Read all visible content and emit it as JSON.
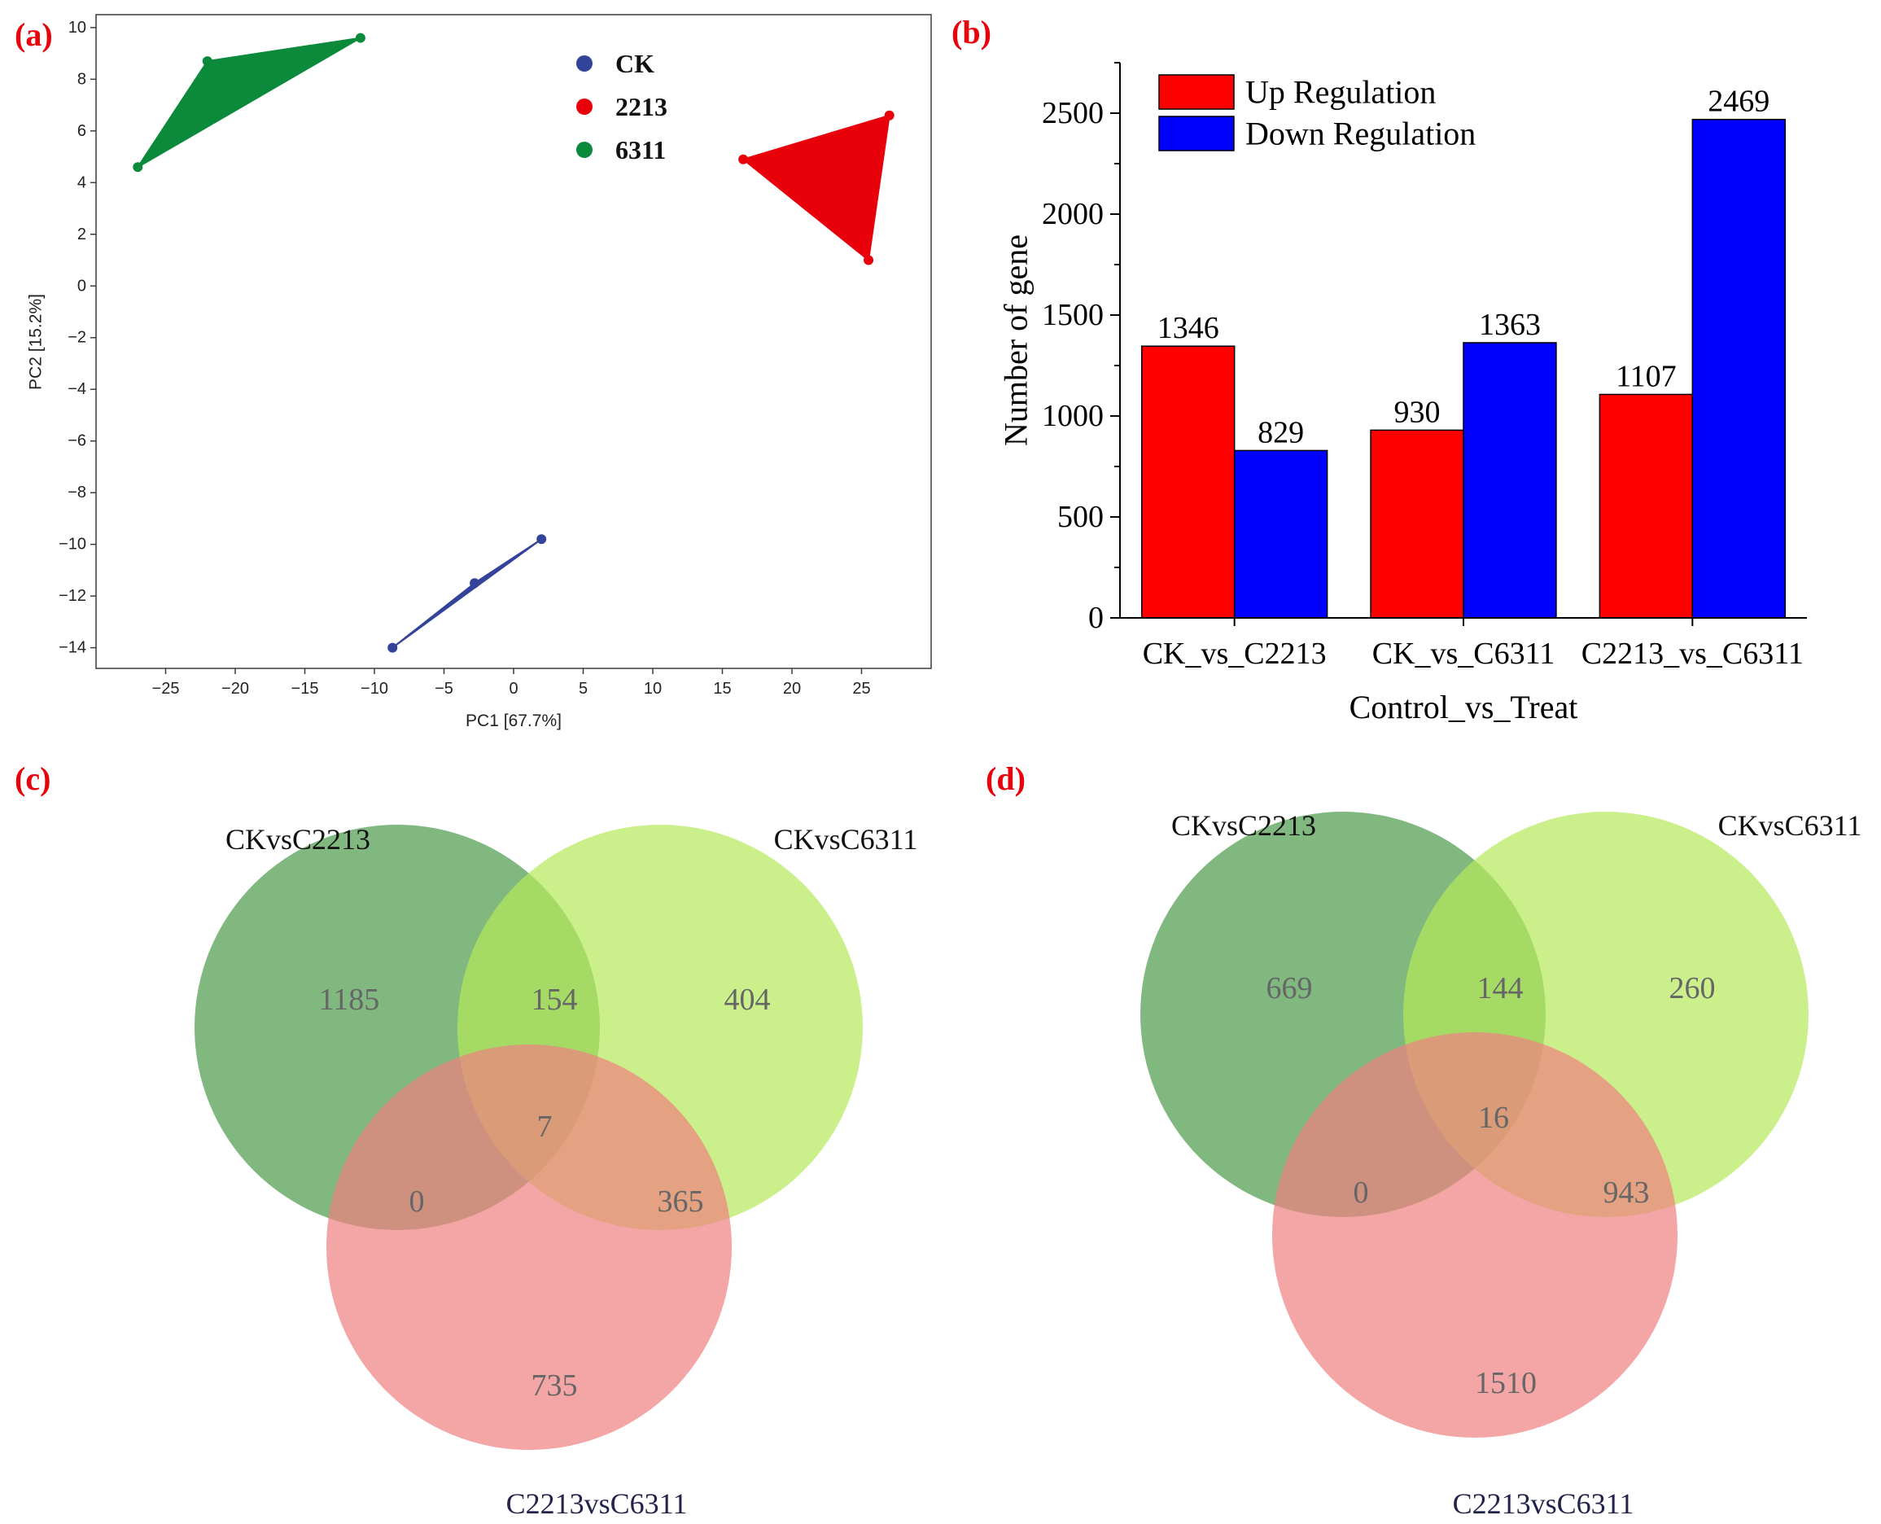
{
  "panel_labels": {
    "a": "(a)",
    "b": "(b)",
    "c": "(c)",
    "d": "(d)"
  },
  "chart_data": [
    {
      "type": "scatter",
      "xlabel": "PC1 [67.7%]",
      "ylabel": "PC2 [15.2%]",
      "xlim": [
        -30,
        30
      ],
      "ylim": [
        -14.8,
        10.5
      ],
      "xticks": [
        -25,
        -20,
        -15,
        -10,
        -5,
        0,
        5,
        10,
        15,
        20,
        25
      ],
      "yticks": [
        -14,
        -12,
        -10,
        -8,
        -6,
        -4,
        -2,
        0,
        2,
        4,
        6,
        8,
        10
      ],
      "grid": false,
      "legend": "top-right",
      "series": [
        {
          "name": "CK",
          "color": "#34439a",
          "points": [
            [
              -8.7,
              -14.0
            ],
            [
              -2.8,
              -11.5
            ],
            [
              2.0,
              -9.8
            ]
          ]
        },
        {
          "name": "2213",
          "color": "#e8000b",
          "points": [
            [
              16.5,
              4.9
            ],
            [
              27.0,
              6.6
            ],
            [
              25.5,
              1.0
            ]
          ]
        },
        {
          "name": "6311",
          "color": "#0b8a3b",
          "points": [
            [
              -27.0,
              4.6
            ],
            [
              -22.0,
              8.7
            ],
            [
              -11.0,
              9.6
            ]
          ]
        }
      ]
    },
    {
      "type": "bar",
      "categories": [
        "CK_vs_C2213",
        "CK_vs_C6311",
        "C2213_vs_C6311"
      ],
      "series": [
        {
          "name": "Up Regulation",
          "color": "#ff0000",
          "values": [
            1346,
            930,
            1107
          ]
        },
        {
          "name": "Down Regulation",
          "color": "#0000ff",
          "values": [
            829,
            1363,
            2469
          ]
        }
      ],
      "xlabel": "Control_vs_Treat",
      "ylabel": "Number of gene",
      "ylim": [
        0,
        2750
      ],
      "yticks": [
        0,
        500,
        1000,
        1500,
        2000,
        2500
      ],
      "grid": false,
      "legend": "top-left"
    },
    {
      "type": "venn",
      "sets": [
        {
          "name": "CKvsC2213",
          "color": "#4a9a4a"
        },
        {
          "name": "CKvsC6311",
          "color": "#b5ea5a"
        },
        {
          "name": "C2213vsC6311",
          "color": "#f08080"
        }
      ],
      "regions": {
        "a_only": 1185,
        "ab": 154,
        "b_only": 404,
        "abc": 7,
        "ac": 0,
        "bc": 365,
        "c_only": 735
      }
    },
    {
      "type": "venn",
      "sets": [
        {
          "name": "CKvsC2213",
          "color": "#4a9a4a"
        },
        {
          "name": "CKvsC6311",
          "color": "#b5ea5a"
        },
        {
          "name": "C2213vsC6311",
          "color": "#f08080"
        }
      ],
      "regions": {
        "a_only": 669,
        "ab": 144,
        "b_only": 260,
        "abc": 16,
        "ac": 0,
        "bc": 943,
        "c_only": 1510
      }
    }
  ]
}
